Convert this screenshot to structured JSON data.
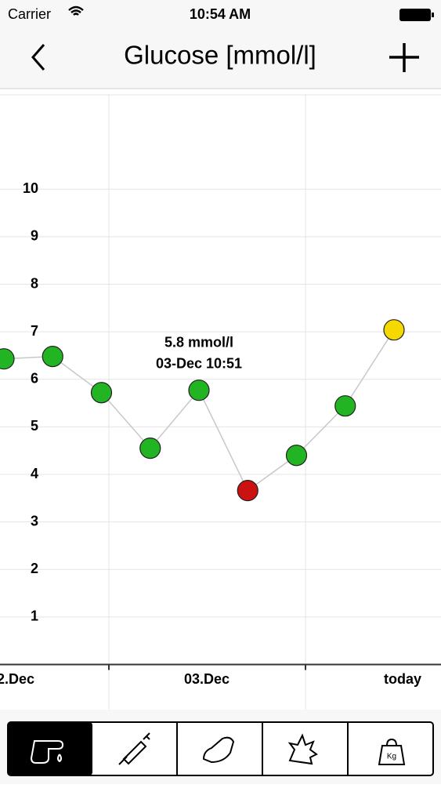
{
  "status_bar": {
    "carrier": "Carrier",
    "time": "10:54 AM"
  },
  "nav_bar": {
    "title": "Glucose [mmol/l]"
  },
  "chart_data": {
    "type": "line",
    "categories": [
      null,
      null,
      null,
      null,
      null,
      null,
      null,
      null,
      null
    ],
    "series": [
      {
        "values": [
          6.43,
          6.48,
          5.72,
          4.55,
          5.77,
          3.66,
          4.4,
          5.44,
          7.04
        ],
        "color": "#c8c8c8",
        "point_colors": [
          "#22b422",
          "#22b422",
          "#22b422",
          "#22b422",
          "#22b422",
          "#cc1111",
          "#22b422",
          "#22b422",
          "#f5d800"
        ]
      }
    ],
    "ylim": [
      0,
      12
    ],
    "yticks": [
      1,
      2,
      3,
      4,
      5,
      6,
      7,
      8,
      9,
      10
    ],
    "grid": true,
    "x_labels": [
      "2.Dec",
      "03.Dec",
      "today"
    ],
    "annotation": {
      "point": 4,
      "lines": [
        "5.8 mmol/l",
        "03-Dec 10:51"
      ]
    }
  },
  "tab_bar": {
    "weight_label": "Kg"
  }
}
